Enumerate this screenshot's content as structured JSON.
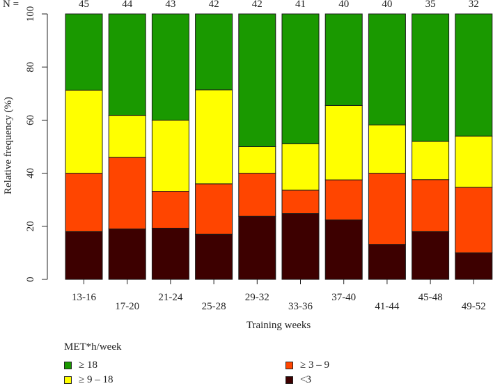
{
  "chart_data": {
    "type": "bar",
    "stacked": true,
    "categories": [
      "13-16",
      "17-20",
      "21-24",
      "25-28",
      "29-32",
      "33-36",
      "37-40",
      "41-44",
      "45-48",
      "49-52"
    ],
    "n_label": "N =",
    "n_values": [
      "45",
      "44",
      "43",
      "42",
      "42",
      "41",
      "40",
      "40",
      "35",
      "32"
    ],
    "series": [
      {
        "name": "<3",
        "color": "#3d0000",
        "values": [
          18,
          19,
          19.3,
          17,
          23.8,
          24.8,
          22.4,
          13.2,
          18,
          10
        ]
      },
      {
        "name": "≥ 3 – 9",
        "color": "#ff4500",
        "values": [
          22,
          27,
          13.9,
          19,
          16.2,
          8.8,
          15.1,
          26.8,
          19.6,
          24.7
        ]
      },
      {
        "name": "≥ 9 – 18",
        "color": "#ffff00",
        "values": [
          31.3,
          15.8,
          26.8,
          35.4,
          10,
          17.5,
          28,
          18.2,
          14.4,
          19.3
        ]
      },
      {
        "name": "≥ 18",
        "color": "#1a9900",
        "values": [
          28.7,
          38.2,
          40,
          28.6,
          50,
          48.9,
          34.5,
          41.8,
          48,
          46
        ]
      }
    ],
    "xlabel": "Training weeks",
    "ylabel": "Relative frequency (%)",
    "ylim": [
      0,
      100
    ],
    "yticks": [
      "0",
      "20",
      "40",
      "60",
      "80",
      "100"
    ],
    "legend": {
      "title": "MET*h/week",
      "position": "bottom-left",
      "items": [
        {
          "label": "≥ 18",
          "color": "#1a9900"
        },
        {
          "label": "≥ 9 – 18",
          "color": "#ffff00"
        },
        {
          "label": "≥ 3 – 9",
          "color": "#ff4500"
        },
        {
          "label": "<3",
          "color": "#3d0000"
        }
      ]
    }
  }
}
